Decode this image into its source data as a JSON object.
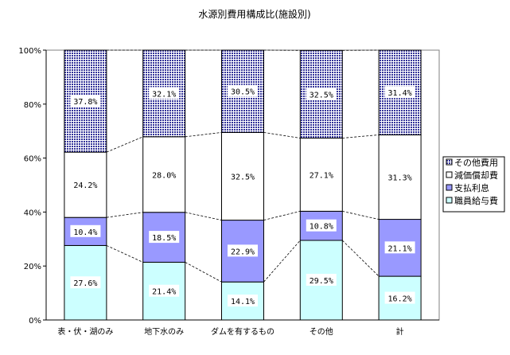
{
  "chart_data": {
    "type": "bar",
    "stacked": true,
    "percent": true,
    "title": "水源別費用構成比(施設別)",
    "categories": [
      "表・伏・湖のみ",
      "地下水のみ",
      "ダムを有するもの",
      "その他",
      "計"
    ],
    "series": [
      {
        "name": "職員給与費",
        "values": [
          27.6,
          21.4,
          14.1,
          29.5,
          16.2
        ],
        "labels": [
          "27.6%",
          "21.4%",
          "14.1%",
          "29.5%",
          "16.2%"
        ],
        "color": "#ccffff",
        "pattern": "solid"
      },
      {
        "name": "支払利息",
        "values": [
          10.4,
          18.5,
          22.9,
          10.8,
          21.1
        ],
        "labels": [
          "10.4%",
          "18.5%",
          "22.9%",
          "10.8%",
          "21.1%"
        ],
        "color": "#9999ff",
        "pattern": "solid"
      },
      {
        "name": "減価償却費",
        "values": [
          24.2,
          28.0,
          32.5,
          27.1,
          31.3
        ],
        "labels": [
          "24.2%",
          "28.0%",
          "32.5%",
          "27.1%",
          "31.3%"
        ],
        "color": "#ffffff",
        "pattern": "solid"
      },
      {
        "name": "その他費用",
        "values": [
          37.8,
          32.1,
          30.5,
          32.5,
          31.4
        ],
        "labels": [
          "37.8%",
          "32.1%",
          "30.5%",
          "32.5%",
          "31.4%"
        ],
        "color": "#333399",
        "pattern": "dots"
      }
    ],
    "y_ticks": [
      "0%",
      "20%",
      "40%",
      "60%",
      "80%",
      "100%"
    ],
    "ylim": [
      0,
      100
    ],
    "legend_position": "right",
    "series_lines": true,
    "grid": false
  }
}
